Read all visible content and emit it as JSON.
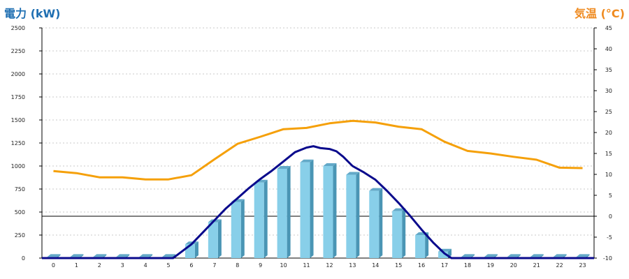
{
  "chart_data": {
    "type": "bar",
    "title": "",
    "left_axis_label": "電力 (kW)",
    "right_axis_label": "気温 (°C)",
    "categories": [
      "0",
      "1",
      "2",
      "3",
      "4",
      "5",
      "6",
      "7",
      "8",
      "9",
      "10",
      "11",
      "12",
      "13",
      "14",
      "15",
      "16",
      "17",
      "18",
      "19",
      "20",
      "21",
      "22",
      "23"
    ],
    "left_ticks": [
      "0",
      "250",
      "500",
      "750",
      "1000",
      "1250",
      "1500",
      "1750",
      "2000",
      "2250",
      "2500"
    ],
    "right_ticks": [
      "-10",
      "-5",
      "0",
      "5",
      "10",
      "15",
      "20",
      "25",
      "30",
      "35",
      "40",
      "45"
    ],
    "ylim_left": [
      0,
      2500
    ],
    "ylim_right": [
      -10,
      45
    ],
    "grid": true,
    "series": [
      {
        "type": "bar",
        "axis": "left",
        "values": [
          12,
          12,
          12,
          12,
          12,
          12,
          150,
          390,
          610,
          820,
          970,
          1040,
          1000,
          905,
          730,
          510,
          250,
          70,
          12,
          12,
          12,
          12,
          12,
          12
        ]
      },
      {
        "type": "line",
        "axis": "right",
        "values": [
          10.8,
          10.3,
          9.3,
          9.3,
          8.8,
          8.8,
          9.8,
          13.6,
          17.3,
          19,
          20.8,
          21.1,
          22.2,
          22.8,
          22.4,
          21.4,
          20.8,
          17.8,
          15.6,
          15,
          14.2,
          13.5,
          11.6,
          11.5
        ]
      },
      {
        "type": "line",
        "axis": "left",
        "x": [
          5.2,
          6.0,
          6.5,
          7.0,
          7.5,
          8.0,
          8.5,
          9.0,
          9.5,
          10.0,
          10.5,
          11.0,
          11.3,
          11.6,
          12.0,
          12.3,
          12.6,
          13.0,
          13.5,
          14.0,
          14.5,
          15.0,
          15.5,
          16.0,
          16.5,
          17.0,
          17.3
        ],
        "values": [
          0,
          150,
          280,
          410,
          540,
          650,
          760,
          860,
          950,
          1050,
          1150,
          1200,
          1215,
          1195,
          1185,
          1160,
          1100,
          1000,
          930,
          850,
          730,
          600,
          460,
          310,
          170,
          50,
          0
        ]
      }
    ],
    "colors": {
      "bar_front": "#88cfe9",
      "bar_side": "#4a95b4",
      "bar_top": "#63a9c8",
      "temperature_line": "#f5a00a",
      "power_line": "#0a0a8c",
      "grid": "#c8c8c8",
      "left_title": "#1f6fb2",
      "right_title": "#ef8a1f"
    }
  }
}
